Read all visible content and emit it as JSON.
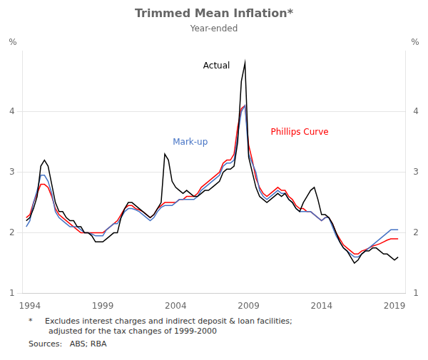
{
  "chart_data": {
    "type": "line",
    "title": "Trimmed Mean Inflation*",
    "subtitle": "Year-ended",
    "ylabel": "%",
    "y2label": "%",
    "x": [
      1993.75,
      1994.0,
      1994.25,
      1994.5,
      1994.75,
      1995.0,
      1995.25,
      1995.5,
      1995.75,
      1996.0,
      1996.25,
      1996.5,
      1996.75,
      1997.0,
      1997.25,
      1997.5,
      1997.75,
      1998.0,
      1998.25,
      1998.5,
      1998.75,
      1999.0,
      1999.25,
      1999.5,
      1999.75,
      2000.0,
      2000.25,
      2000.5,
      2000.75,
      2001.0,
      2001.25,
      2001.5,
      2001.75,
      2002.0,
      2002.25,
      2002.5,
      2002.75,
      2003.0,
      2003.25,
      2003.5,
      2003.75,
      2004.0,
      2004.25,
      2004.5,
      2004.75,
      2005.0,
      2005.25,
      2005.5,
      2005.75,
      2006.0,
      2006.25,
      2006.5,
      2006.75,
      2007.0,
      2007.25,
      2007.5,
      2007.75,
      2008.0,
      2008.25,
      2008.5,
      2008.75,
      2009.0,
      2009.25,
      2009.5,
      2009.75,
      2010.0,
      2010.25,
      2010.5,
      2010.75,
      2011.0,
      2011.25,
      2011.5,
      2011.75,
      2012.0,
      2012.25,
      2012.5,
      2012.75,
      2013.0,
      2013.25,
      2013.5,
      2013.75,
      2014.0,
      2014.25,
      2014.5,
      2014.75,
      2015.0,
      2015.25,
      2015.5,
      2015.75,
      2016.0,
      2016.25,
      2016.5,
      2016.75,
      2017.0,
      2017.25,
      2017.5,
      2017.75,
      2018.0,
      2018.25,
      2018.5,
      2018.75,
      2019.0,
      2019.25
    ],
    "series": [
      {
        "name": "Actual",
        "color": "#000000",
        "values": [
          2.2,
          2.25,
          2.4,
          2.6,
          3.1,
          3.2,
          3.1,
          2.8,
          2.5,
          2.35,
          2.35,
          2.25,
          2.2,
          2.2,
          2.1,
          2.1,
          2.0,
          2.0,
          1.95,
          1.85,
          1.85,
          1.85,
          1.9,
          1.95,
          2.0,
          2.0,
          2.25,
          2.4,
          2.5,
          2.5,
          2.45,
          2.4,
          2.35,
          2.3,
          2.25,
          2.3,
          2.4,
          2.5,
          3.3,
          3.2,
          2.85,
          2.75,
          2.7,
          2.65,
          2.7,
          2.65,
          2.6,
          2.6,
          2.65,
          2.7,
          2.7,
          2.75,
          2.8,
          2.85,
          3.0,
          3.05,
          3.05,
          3.1,
          3.5,
          4.5,
          4.8,
          3.25,
          3.0,
          2.75,
          2.6,
          2.55,
          2.5,
          2.55,
          2.6,
          2.65,
          2.6,
          2.65,
          2.55,
          2.5,
          2.4,
          2.35,
          2.5,
          2.6,
          2.7,
          2.75,
          2.55,
          2.3,
          2.3,
          2.25,
          2.15,
          2.0,
          1.85,
          1.75,
          1.7,
          1.6,
          1.5,
          1.55,
          1.65,
          1.7,
          1.7,
          1.75,
          1.75,
          1.7,
          1.65,
          1.65,
          1.6,
          1.55,
          1.6
        ]
      },
      {
        "name": "Mark-up",
        "color": "#4472C4",
        "values": [
          2.1,
          2.2,
          2.5,
          2.7,
          2.95,
          2.95,
          2.85,
          2.65,
          2.35,
          2.25,
          2.2,
          2.15,
          2.1,
          2.1,
          2.1,
          2.05,
          2.0,
          2.0,
          1.98,
          1.95,
          1.95,
          1.95,
          2.05,
          2.1,
          2.15,
          2.15,
          2.25,
          2.35,
          2.4,
          2.4,
          2.38,
          2.35,
          2.3,
          2.25,
          2.2,
          2.25,
          2.35,
          2.42,
          2.45,
          2.45,
          2.45,
          2.5,
          2.55,
          2.55,
          2.55,
          2.55,
          2.55,
          2.6,
          2.7,
          2.75,
          2.8,
          2.85,
          2.9,
          2.95,
          3.1,
          3.15,
          3.15,
          3.2,
          3.6,
          4.0,
          4.1,
          3.3,
          3.15,
          3.0,
          2.7,
          2.6,
          2.55,
          2.6,
          2.65,
          2.7,
          2.65,
          2.65,
          2.55,
          2.5,
          2.4,
          2.35,
          2.35,
          2.35,
          2.35,
          2.3,
          2.25,
          2.2,
          2.25,
          2.25,
          2.1,
          1.95,
          1.85,
          1.75,
          1.7,
          1.65,
          1.6,
          1.6,
          1.65,
          1.7,
          1.75,
          1.8,
          1.85,
          1.9,
          1.95,
          2.0,
          2.05,
          2.05,
          2.05
        ]
      },
      {
        "name": "Phillips Curve",
        "color": "#FF0000",
        "values": [
          2.25,
          2.3,
          2.5,
          2.65,
          2.8,
          2.8,
          2.75,
          2.6,
          2.4,
          2.3,
          2.25,
          2.2,
          2.15,
          2.1,
          2.05,
          2.0,
          2.0,
          2.0,
          2.0,
          2.0,
          2.0,
          2.0,
          2.05,
          2.1,
          2.15,
          2.2,
          2.3,
          2.4,
          2.45,
          2.45,
          2.4,
          2.38,
          2.35,
          2.3,
          2.25,
          2.3,
          2.4,
          2.45,
          2.5,
          2.5,
          2.5,
          2.5,
          2.55,
          2.55,
          2.6,
          2.6,
          2.6,
          2.65,
          2.75,
          2.8,
          2.85,
          2.9,
          2.95,
          3.0,
          3.15,
          3.2,
          3.2,
          3.3,
          3.75,
          4.05,
          4.1,
          3.45,
          3.2,
          2.9,
          2.75,
          2.65,
          2.6,
          2.65,
          2.7,
          2.75,
          2.7,
          2.7,
          2.6,
          2.55,
          2.45,
          2.4,
          2.4,
          2.35,
          2.35,
          2.3,
          2.25,
          2.2,
          2.25,
          2.25,
          2.15,
          2.0,
          1.9,
          1.8,
          1.75,
          1.7,
          1.65,
          1.65,
          1.7,
          1.72,
          1.75,
          1.78,
          1.8,
          1.82,
          1.85,
          1.88,
          1.9,
          1.9,
          1.9
        ]
      }
    ],
    "xlim": [
      1993.5,
      2019.75
    ],
    "xticks": [
      1994,
      1999,
      2004,
      2009,
      2014,
      2019
    ],
    "ylim": [
      1,
      5
    ],
    "yticks": [
      1,
      2,
      3,
      4
    ],
    "y2lim": [
      1,
      5
    ],
    "y2ticks": [
      1,
      2,
      3,
      4
    ],
    "grid": true,
    "annotations": [
      {
        "text": "Actual",
        "x": 2006.8,
        "y": 4.68,
        "color": "#000000"
      },
      {
        "text": "Mark-up",
        "x": 2005.0,
        "y": 3.42,
        "color": "#4472C4"
      },
      {
        "text": "Phillips Curve",
        "x": 2012.5,
        "y": 3.58,
        "color": "#FF0000"
      }
    ],
    "notes": [
      "*     Excludes interest charges and indirect deposit & loan facilities;\n        adjusted for the tax changes of 1999-2000",
      "Sources:   ABS; RBA"
    ]
  }
}
